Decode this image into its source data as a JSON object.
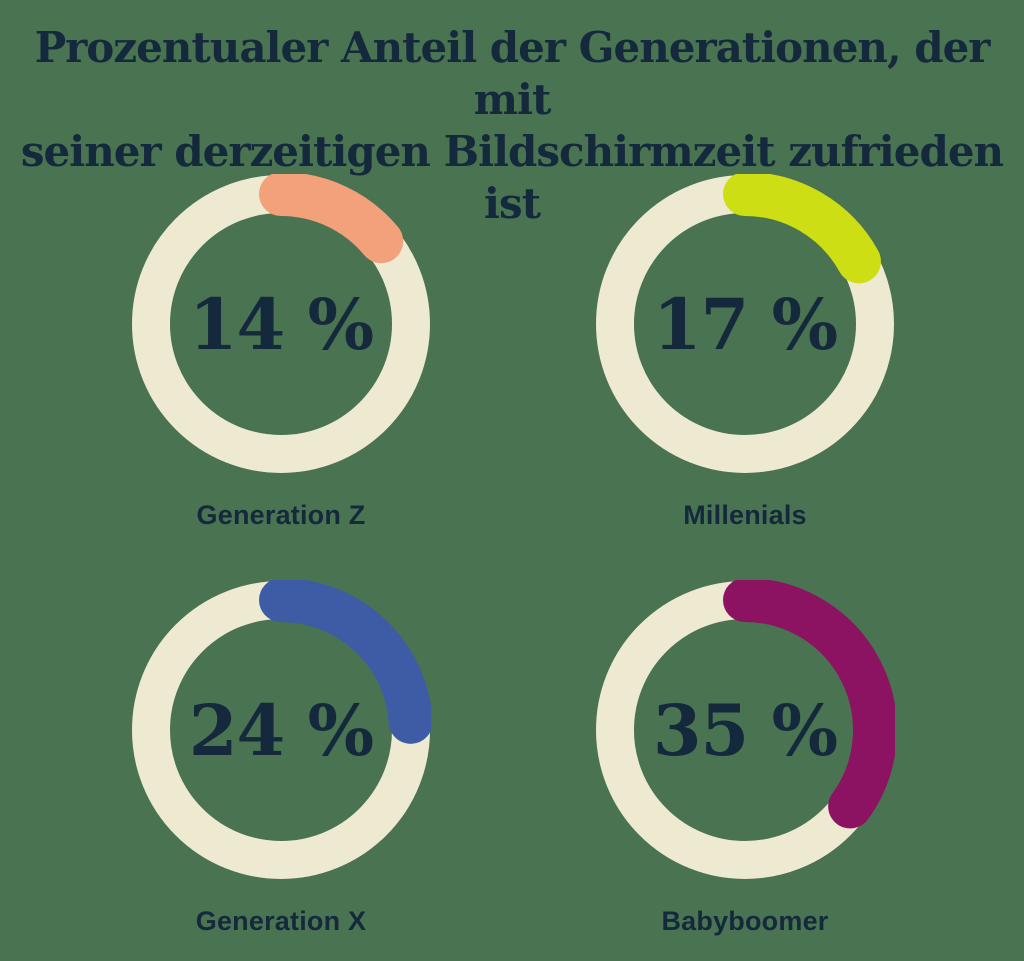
{
  "title": {
    "line1": "Prozentualer Anteil der Generationen, der mit",
    "line2": "seiner derzeitigen Bildschirmzeit zufrieden ist",
    "full_text": "Prozentualer Anteil der Generationen, der mit seiner derzeitigen Bildschirmzeit zufrieden ist"
  },
  "colors": {
    "background": "#4A7351",
    "track": "#EEE9D1",
    "text": "#15293D"
  },
  "chart_data": {
    "type": "pie",
    "variant": "donut-progress-rings",
    "title": "Prozentualer Anteil der Generationen, der mit seiner derzeitigen Bildschirmzeit zufrieden ist",
    "unit": "%",
    "categories": [
      "Generation Z",
      "Millenials",
      "Generation X",
      "Babyboomer"
    ],
    "values": [
      14,
      17,
      24,
      35
    ],
    "value_labels": [
      "14 %",
      "17 %",
      "24 %",
      "35 %"
    ],
    "segment_colors": [
      "#F2A17B",
      "#CEDE14",
      "#3E5BA6",
      "#8B1362"
    ],
    "track_color": "#EEE9D1",
    "start_angle_deg": 0,
    "direction": "clockwise",
    "legend_position": "label-below-each-ring",
    "layout": "2x2-grid"
  }
}
